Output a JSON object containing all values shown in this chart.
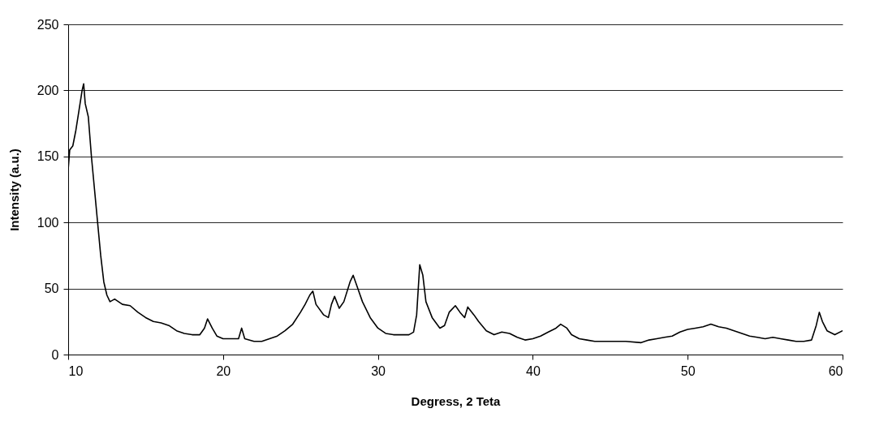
{
  "chart_data": {
    "type": "line",
    "xlabel": "Degress, 2 Teta",
    "ylabel": "Intensity (a.u.)",
    "xlim": [
      10,
      60
    ],
    "xticks": [
      10,
      20,
      30,
      40,
      50,
      60
    ],
    "ylim": [
      0,
      250
    ],
    "yticks": [
      0,
      50,
      100,
      150,
      200,
      250
    ],
    "grid": "y",
    "line_style": "solid",
    "series": [
      {
        "color": "#000000",
        "x": [
          10.0,
          10.1,
          10.3,
          10.5,
          10.7,
          10.9,
          11.0,
          11.1,
          11.3,
          11.5,
          11.7,
          11.9,
          12.1,
          12.3,
          12.5,
          12.7,
          13.0,
          13.5,
          14.0,
          14.5,
          15.0,
          15.5,
          16.0,
          16.5,
          17.0,
          17.5,
          18.0,
          18.5,
          18.8,
          19.0,
          19.3,
          19.6,
          20.0,
          20.5,
          21.0,
          21.2,
          21.4,
          22.0,
          22.5,
          23.0,
          23.5,
          24.0,
          24.5,
          25.0,
          25.3,
          25.6,
          25.8,
          26.0,
          26.5,
          26.8,
          27.0,
          27.2,
          27.5,
          27.8,
          28.2,
          28.4,
          28.7,
          29.0,
          29.5,
          30.0,
          30.5,
          31.0,
          31.5,
          32.0,
          32.3,
          32.5,
          32.7,
          32.9,
          33.1,
          33.5,
          34.0,
          34.3,
          34.6,
          35.0,
          35.3,
          35.6,
          35.8,
          36.2,
          36.5,
          37.0,
          37.5,
          38.0,
          38.5,
          39.0,
          39.5,
          40.0,
          40.5,
          41.0,
          41.5,
          41.8,
          42.2,
          42.5,
          43.0,
          43.5,
          44.0,
          45.0,
          46.0,
          47.0,
          47.5,
          48.0,
          48.5,
          49.0,
          49.5,
          50.0,
          50.5,
          51.0,
          51.5,
          52.0,
          52.5,
          53.0,
          53.5,
          54.0,
          54.5,
          55.0,
          55.5,
          56.0,
          56.5,
          57.0,
          57.5,
          58.0,
          58.3,
          58.5,
          58.7,
          59.0,
          59.5,
          60.0
        ],
        "values": [
          140,
          155,
          158,
          170,
          185,
          200,
          205,
          190,
          180,
          150,
          125,
          100,
          75,
          55,
          45,
          40,
          42,
          38,
          37,
          32,
          28,
          25,
          24,
          22,
          18,
          16,
          15,
          15,
          20,
          27,
          20,
          14,
          12,
          12,
          12,
          20,
          12,
          10,
          10,
          12,
          14,
          18,
          23,
          32,
          38,
          45,
          48,
          38,
          30,
          28,
          38,
          44,
          35,
          40,
          55,
          60,
          50,
          40,
          28,
          20,
          16,
          15,
          15,
          15,
          17,
          30,
          68,
          60,
          40,
          28,
          20,
          22,
          32,
          37,
          32,
          28,
          36,
          30,
          25,
          18,
          15,
          17,
          16,
          13,
          11,
          12,
          14,
          17,
          20,
          23,
          20,
          15,
          12,
          11,
          10,
          10,
          10,
          9,
          11,
          12,
          13,
          14,
          17,
          19,
          20,
          21,
          23,
          21,
          20,
          18,
          16,
          14,
          13,
          12,
          13,
          12,
          11,
          10,
          10,
          11,
          22,
          32,
          25,
          18,
          15,
          18
        ]
      }
    ]
  }
}
